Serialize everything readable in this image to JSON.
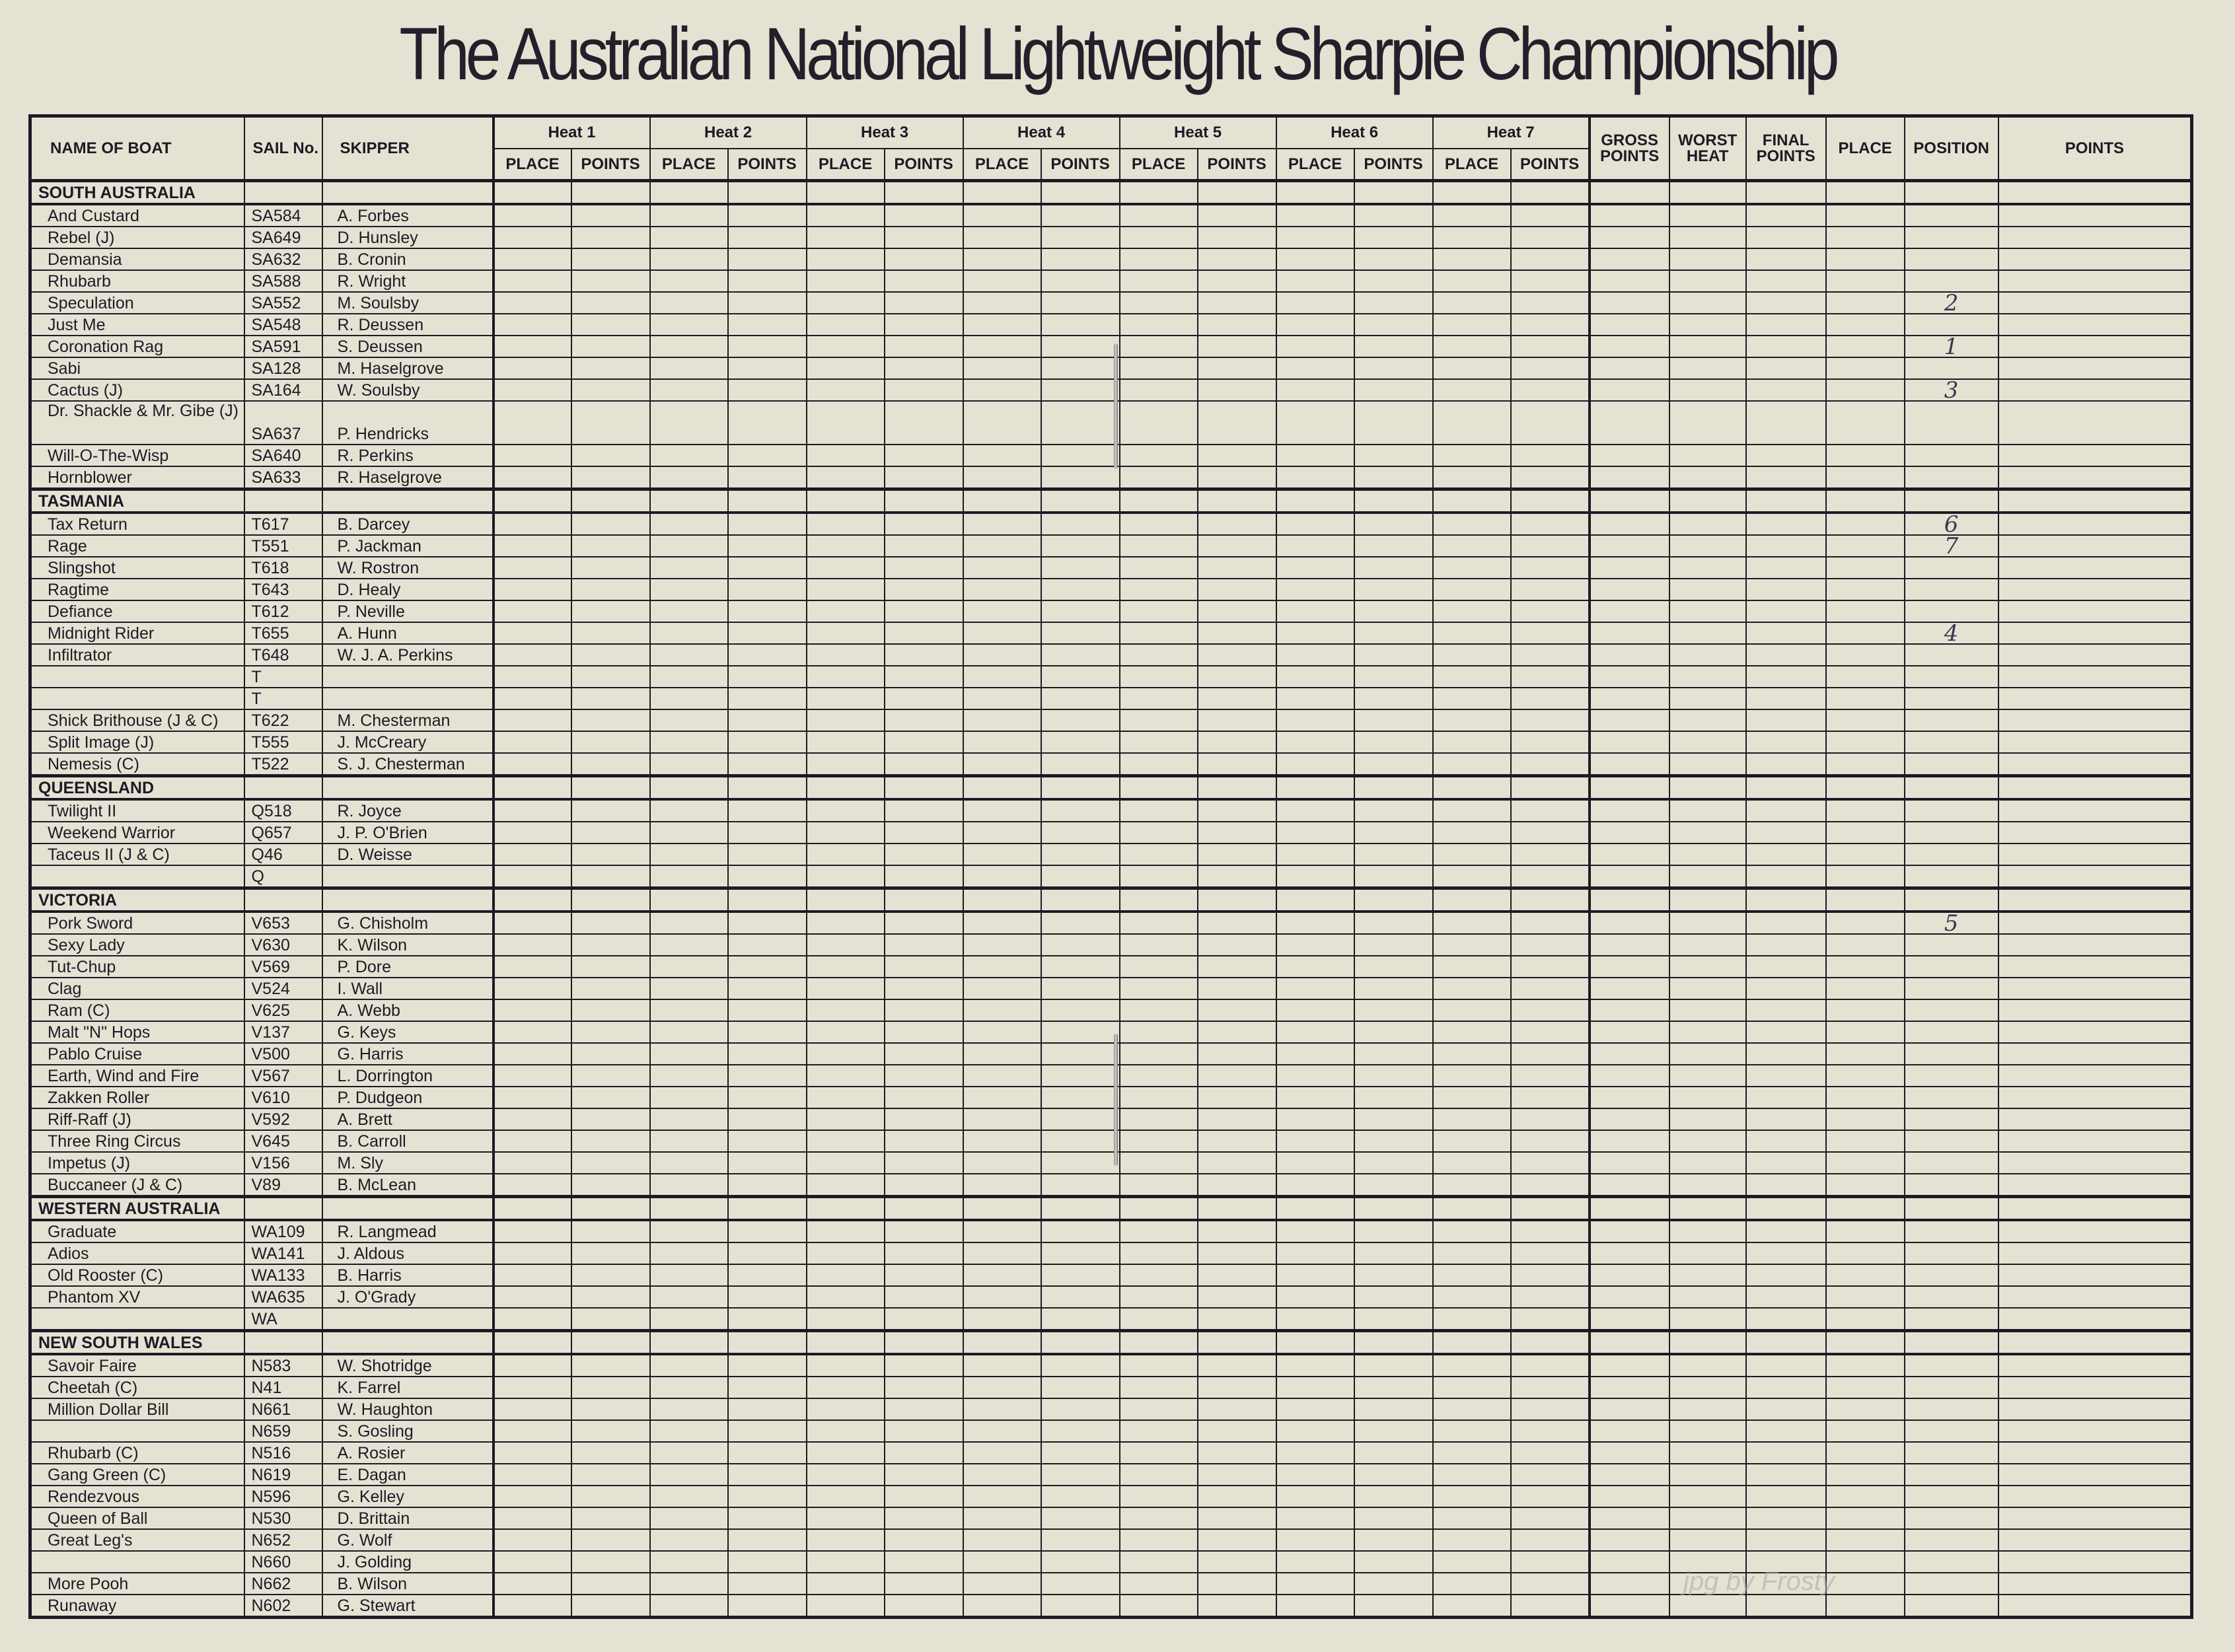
{
  "title": "The Australian National Lightweight Sharpie Championship",
  "headers": {
    "name_of_boat": "NAME OF BOAT",
    "sail_no": "SAIL No.",
    "skipper": "SKIPPER",
    "heats": [
      "Heat 1",
      "Heat 2",
      "Heat 3",
      "Heat 4",
      "Heat 5",
      "Heat 6",
      "Heat 7"
    ],
    "place": "PLACE",
    "points": "POINTS",
    "gross_points": "GROSS POINTS",
    "worst_heat": "WORST HEAT",
    "final_points": "FINAL POINTS",
    "final_place": "PLACE",
    "position": "POSITION",
    "final_points_col": "POINTS"
  },
  "sections": [
    {
      "state": "SOUTH  AUSTRALIA",
      "rows": [
        {
          "name": "And Custard",
          "sail": "SA584",
          "skipper": "A. Forbes"
        },
        {
          "name": "Rebel (J)",
          "sail": "SA649",
          "skipper": "D. Hunsley"
        },
        {
          "name": "Demansia",
          "sail": "SA632",
          "skipper": "B. Cronin"
        },
        {
          "name": "Rhubarb",
          "sail": "SA588",
          "skipper": "R. Wright"
        },
        {
          "name": "Speculation",
          "sail": "SA552",
          "skipper": "M. Soulsby",
          "position": "2"
        },
        {
          "name": "Just  Me",
          "sail": "SA548",
          "skipper": "R. Deussen"
        },
        {
          "name": "Coronation  Rag",
          "sail": "SA591",
          "skipper": "S. Deussen",
          "position": "1"
        },
        {
          "name": "Sabi",
          "sail": "SA128",
          "skipper": "M. Haselgrove"
        },
        {
          "name": "Cactus  (J)",
          "sail": "SA164",
          "skipper": "W. Soulsby",
          "position": "3"
        },
        {
          "name": "Dr. Shackle & Mr. Gibe (J)",
          "sail": "SA637",
          "skipper": "P. Hendricks",
          "tall": true
        },
        {
          "name": "Will-O-The-Wisp",
          "sail": "SA640",
          "skipper": "R. Perkins"
        },
        {
          "name": "Hornblower",
          "sail": "SA633",
          "skipper": "R. Haselgrove"
        }
      ]
    },
    {
      "state": "TASMANIA",
      "rows": [
        {
          "name": "Tax Return",
          "sail": "T617",
          "skipper": "B. Darcey",
          "position": "6"
        },
        {
          "name": "Rage",
          "sail": "T551",
          "skipper": "P. Jackman",
          "position": "7"
        },
        {
          "name": "Slingshot",
          "sail": "T618",
          "skipper": "W. Rostron"
        },
        {
          "name": "Ragtime",
          "sail": "T643",
          "skipper": "D. Healy"
        },
        {
          "name": "Defiance",
          "sail": "T612",
          "skipper": "P. Neville"
        },
        {
          "name": "Midnight Rider",
          "sail": "T655",
          "skipper": "A. Hunn",
          "position": "4"
        },
        {
          "name": "Infiltrator",
          "sail": "T648",
          "skipper": "W. J. A. Perkins"
        },
        {
          "name": "",
          "sail": "T",
          "skipper": ""
        },
        {
          "name": "",
          "sail": "T",
          "skipper": ""
        },
        {
          "name": "Shick Brithouse (J & C)",
          "sail": "T622",
          "skipper": "M. Chesterman"
        },
        {
          "name": "Split Image (J)",
          "sail": "T555",
          "skipper": "J. McCreary"
        },
        {
          "name": "Nemesis (C)",
          "sail": "T522",
          "skipper": "S. J. Chesterman"
        }
      ]
    },
    {
      "state": "QUEENSLAND",
      "rows": [
        {
          "name": "Twilight II",
          "sail": "Q518",
          "skipper": "R. Joyce"
        },
        {
          "name": "Weekend Warrior",
          "sail": "Q657",
          "skipper": "J. P. O'Brien"
        },
        {
          "name": "Taceus II (J & C)",
          "sail": "Q46",
          "skipper": "D. Weisse"
        },
        {
          "name": "",
          "sail": "Q",
          "skipper": ""
        }
      ]
    },
    {
      "state": "VICTORIA",
      "rows": [
        {
          "name": "Pork Sword",
          "sail": "V653",
          "skipper": "G. Chisholm",
          "position": "5"
        },
        {
          "name": "Sexy Lady",
          "sail": "V630",
          "skipper": "K. Wilson"
        },
        {
          "name": "Tut-Chup",
          "sail": "V569",
          "skipper": "P. Dore"
        },
        {
          "name": "Clag",
          "sail": "V524",
          "skipper": "I. Wall"
        },
        {
          "name": "Ram (C)",
          "sail": "V625",
          "skipper": "A. Webb"
        },
        {
          "name": "Malt \"N\" Hops",
          "sail": "V137",
          "skipper": "G. Keys"
        },
        {
          "name": "Pablo Cruise",
          "sail": "V500",
          "skipper": "G. Harris"
        },
        {
          "name": "Earth, Wind and Fire",
          "sail": "V567",
          "skipper": "L. Dorrington"
        },
        {
          "name": "Zakken Roller",
          "sail": "V610",
          "skipper": "P. Dudgeon"
        },
        {
          "name": "Riff-Raff (J)",
          "sail": "V592",
          "skipper": "A. Brett"
        },
        {
          "name": "Three Ring Circus",
          "sail": "V645",
          "skipper": "B. Carroll"
        },
        {
          "name": "Impetus (J)",
          "sail": "V156",
          "skipper": "M. Sly"
        },
        {
          "name": "Buccaneer (J & C)",
          "sail": "V89",
          "skipper": "B. McLean"
        }
      ]
    },
    {
      "state": "WESTERN  AUSTRALIA",
      "rows": [
        {
          "name": "Graduate",
          "sail": "WA109",
          "skipper": "R. Langmead"
        },
        {
          "name": "Adios",
          "sail": "WA141",
          "skipper": "J. Aldous"
        },
        {
          "name": "Old Rooster (C)",
          "sail": "WA133",
          "skipper": "B. Harris"
        },
        {
          "name": "Phantom XV",
          "sail": "WA635",
          "skipper": "J. O'Grady"
        },
        {
          "name": "",
          "sail": "WA",
          "skipper": ""
        }
      ]
    },
    {
      "state": "NEW SOUTH WALES",
      "rows": [
        {
          "name": "Savoir Faire",
          "sail": "N583",
          "skipper": "W. Shotridge"
        },
        {
          "name": "Cheetah (C)",
          "sail": "N41",
          "skipper": "K. Farrel"
        },
        {
          "name": "Million Dollar Bill",
          "sail": "N661",
          "skipper": "W. Haughton"
        },
        {
          "name": "",
          "sail": "N659",
          "skipper": "S. Gosling"
        },
        {
          "name": "Rhubarb (C)",
          "sail": "N516",
          "skipper": "A. Rosier"
        },
        {
          "name": "Gang Green (C)",
          "sail": "N619",
          "skipper": "E. Dagan"
        },
        {
          "name": "Rendezvous",
          "sail": "N596",
          "skipper": "G. Kelley"
        },
        {
          "name": "Queen of Ball",
          "sail": "N530",
          "skipper": "D. Brittain"
        },
        {
          "name": "Great Leg's",
          "sail": "N652",
          "skipper": "G. Wolf"
        },
        {
          "name": "",
          "sail": "N660",
          "skipper": "J. Golding"
        },
        {
          "name": "More Pooh",
          "sail": "N662",
          "skipper": "B. Wilson"
        },
        {
          "name": "Runaway",
          "sail": "N602",
          "skipper": "G. Stewart"
        }
      ]
    }
  ],
  "watermark": "jpg by Frosty"
}
